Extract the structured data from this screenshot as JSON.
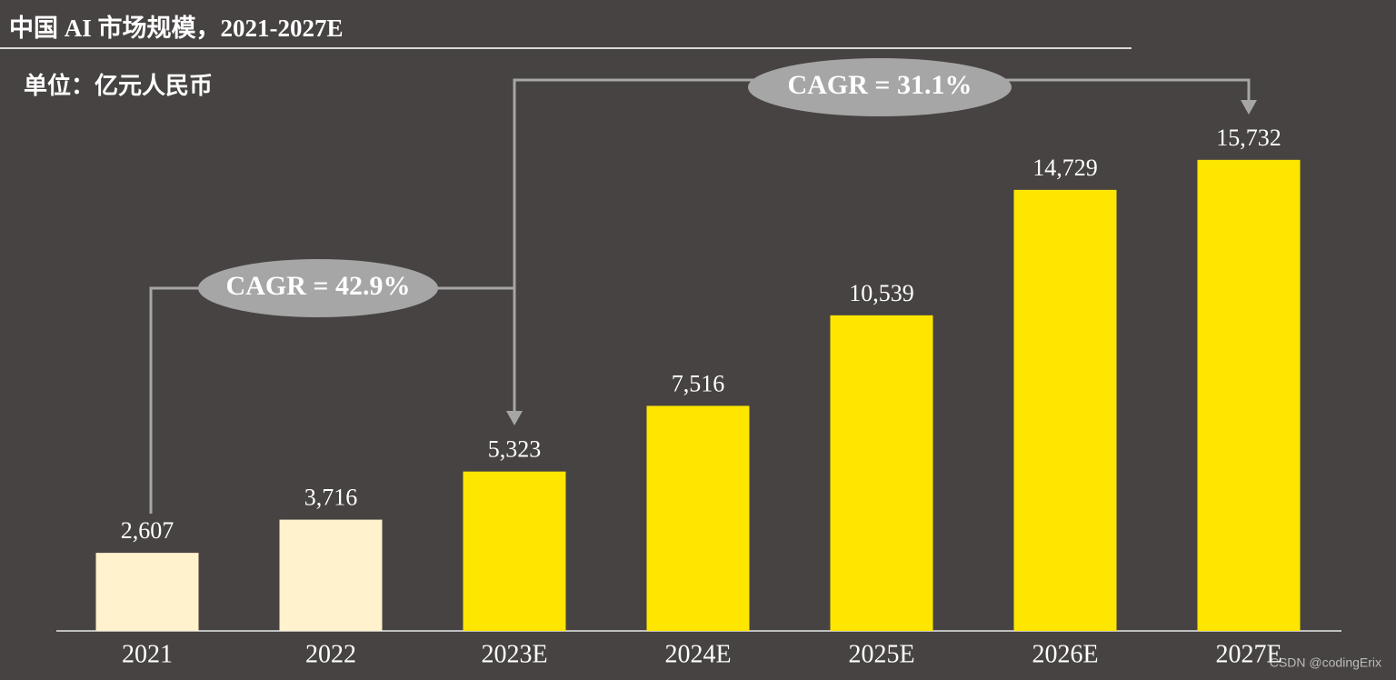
{
  "chart_data": {
    "type": "bar",
    "title": "中国 AI 市场规模，2021-2027E",
    "subtitle": "单位：亿元人民币",
    "categories": [
      "2021",
      "2022",
      "2023E",
      "2024E",
      "2025E",
      "2026E",
      "2027E"
    ],
    "values": [
      2607,
      3716,
      5323,
      7516,
      10539,
      14729,
      15732
    ],
    "value_labels": [
      "2,607",
      "3,716",
      "5,323",
      "7,516",
      "10,539",
      "14,729",
      "15,732"
    ],
    "colors": [
      "#fff2cc",
      "#fff2cc",
      "#ffe600",
      "#ffe600",
      "#ffe600",
      "#ffe600",
      "#ffe600"
    ],
    "ylim": [
      0,
      16000
    ],
    "annotations": [
      "CAGR = 42.9%",
      "CAGR = 31.1%"
    ],
    "watermark": "CSDN @codingErix"
  }
}
